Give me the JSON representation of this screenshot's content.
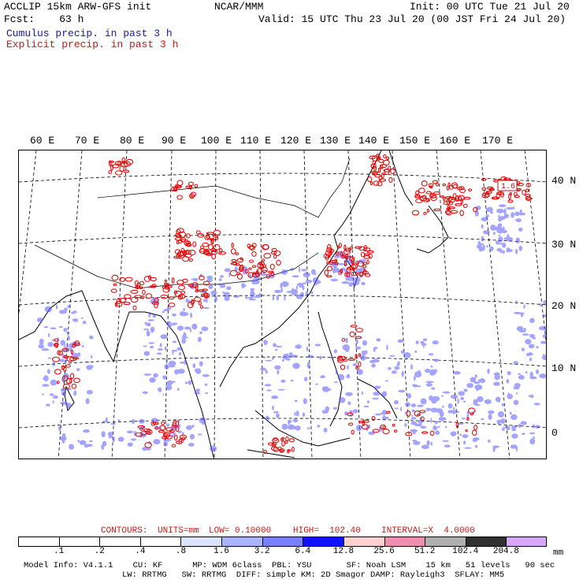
{
  "header": {
    "title_left": "ACCLIP 15km ARW-GFS init",
    "title_center": "NCAR/MMM",
    "init": "Init: 00 UTC Tue 21 Jul 20",
    "fcst": "Fcst:    63 h",
    "valid": "Valid: 15 UTC Thu 23 Jul 20 (00 JST Fri 24 Jul 20)",
    "legend_cumulus": "Cumulus precip. in past 3 h",
    "legend_explicit": "Explicit precip. in past 3 h"
  },
  "map": {
    "lon_labels": [
      "60 E",
      "70 E",
      "80 E",
      "90 E",
      "100 E",
      "110 E",
      "120 E",
      "130 E",
      "140 E",
      "150 E",
      "160 E",
      "170 E"
    ],
    "lat_labels": [
      "40 N",
      "30 N",
      "20 N",
      "10 N",
      "0"
    ],
    "max_label": "1.6"
  },
  "contours": {
    "label": "CONTOURS:",
    "units": "UNITS=mm",
    "low": "LOW= 0.10000",
    "high": "HIGH=  102.40",
    "interval": "INTERVAL=X  4.0000"
  },
  "colorbar": {
    "ticks": [
      ".1",
      ".2",
      ".4",
      ".8",
      "1.6",
      "3.2",
      "6.4",
      "12.8",
      "25.6",
      "51.2",
      "102.4",
      "204.8"
    ],
    "unit": "mm",
    "colors": [
      "#ffffff",
      "#ffffff",
      "#ffffff",
      "#ffffff",
      "#dde4ff",
      "#aab4ff",
      "#7a80ff",
      "#1010ff",
      "#ffd0d0",
      "#f090b0",
      "#b0b0b0",
      "#303030",
      "#d8a8ff"
    ]
  },
  "footer": {
    "line1": "Model Info: V4.1.1    CU: KF      MP: WDM 6class  PBL: YSU       SF: Noah LSM    15 km   51 levels   90 sec",
    "line2": "LW: RRTMG   SW: RRTMG  DIFF: simple KM: 2D Smagor DAMP: Rayleigh3  SFLAY: MM5"
  }
}
